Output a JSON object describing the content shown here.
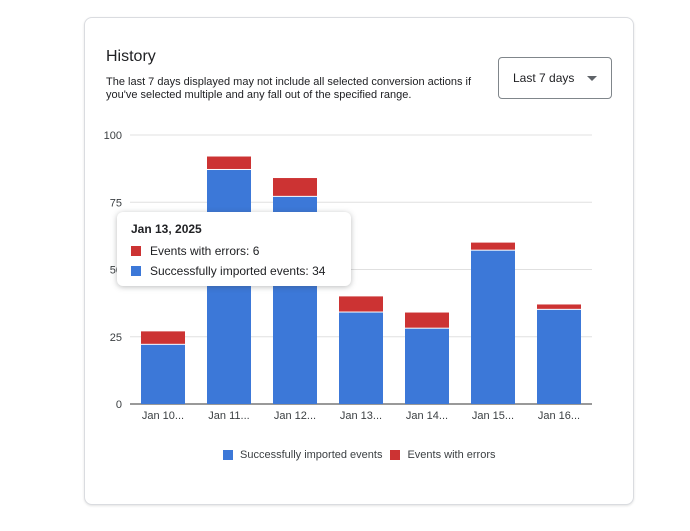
{
  "card": {
    "title": "History",
    "description": "The last 7 days displayed may not include all selected conversion actions if you've selected multiple and any fall out of the specified range.",
    "range_dropdown": {
      "value": "Last 7 days",
      "icon": "arrow-drop-down-icon"
    }
  },
  "colors": {
    "success": "#3c78d8",
    "error": "#cc3333"
  },
  "tooltip": {
    "date": "Jan 13, 2025",
    "rows": [
      {
        "label": "Events with errors: 6",
        "color": "#cc3333"
      },
      {
        "label": "Successfully imported events: 34",
        "color": "#3c78d8"
      }
    ]
  },
  "legend": [
    {
      "label": "Successfully imported events",
      "color": "#3c78d8"
    },
    {
      "label": "Events with errors",
      "color": "#cc3333"
    }
  ],
  "chart_data": {
    "type": "bar",
    "stacked": true,
    "categories": [
      "Jan 10...",
      "Jan 11...",
      "Jan 12...",
      "Jan 13...",
      "Jan 14...",
      "Jan 15...",
      "Jan 16..."
    ],
    "series": [
      {
        "name": "Successfully imported events",
        "values": [
          22,
          87,
          77,
          34,
          28,
          57,
          35
        ]
      },
      {
        "name": "Events with errors",
        "values": [
          5,
          5,
          7,
          6,
          6,
          3,
          2
        ]
      }
    ],
    "yticks": [
      0,
      25,
      50,
      75,
      100
    ],
    "ylim": [
      0,
      100
    ],
    "grid": true,
    "legend_position": "bottom"
  }
}
